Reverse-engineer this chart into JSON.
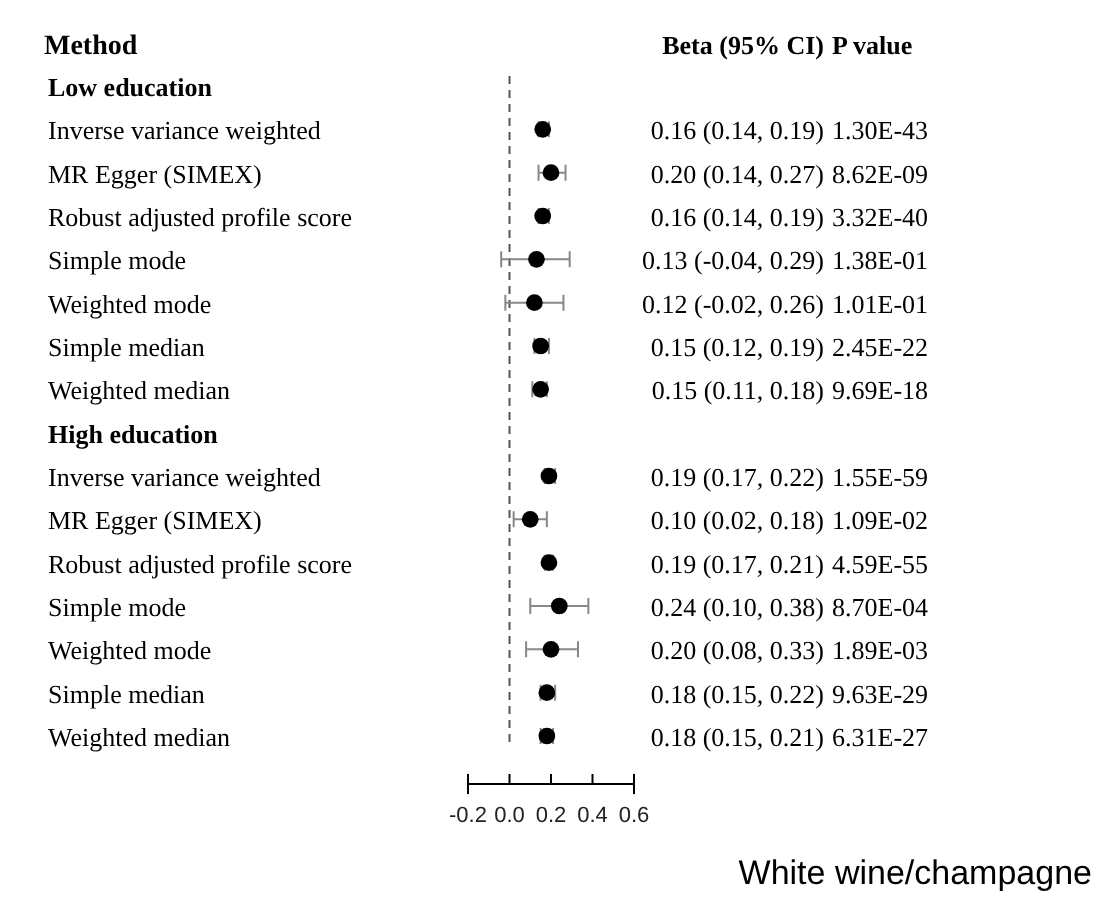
{
  "chart_data": {
    "type": "scatter",
    "orientation": "horizontal",
    "title": "White wine/champagne",
    "ylabel": "Method",
    "categories": [
      "Low education",
      "Inverse variance weighted",
      "MR Egger (SIMEX)",
      "Robust adjusted profile score",
      "Simple mode",
      "Weighted mode",
      "Simple median",
      "Weighted median",
      "High education",
      "Inverse variance weighted",
      "MR Egger (SIMEX)",
      "Robust adjusted profile score",
      "Simple mode",
      "Weighted mode",
      "Simple median",
      "Weighted median"
    ],
    "values": [
      null,
      0.16,
      0.2,
      0.16,
      0.13,
      0.12,
      0.15,
      0.15,
      null,
      0.19,
      0.1,
      0.19,
      0.24,
      0.2,
      0.18,
      0.18
    ],
    "errors": [
      null,
      [
        0.14,
        0.19
      ],
      [
        0.14,
        0.27
      ],
      [
        0.14,
        0.19
      ],
      [
        -0.04,
        0.29
      ],
      [
        -0.02,
        0.26
      ],
      [
        0.12,
        0.19
      ],
      [
        0.11,
        0.18
      ],
      null,
      [
        0.17,
        0.22
      ],
      [
        0.02,
        0.18
      ],
      [
        0.17,
        0.21
      ],
      [
        0.1,
        0.38
      ],
      [
        0.08,
        0.33
      ],
      [
        0.15,
        0.22
      ],
      [
        0.15,
        0.21
      ]
    ],
    "value_labels": [
      null,
      "0.16 (0.14, 0.19)",
      "0.20 (0.14, 0.27)",
      "0.16 (0.14, 0.19)",
      "0.13 (-0.04, 0.29)",
      "0.12 (-0.02, 0.26)",
      "0.15 (0.12, 0.19)",
      "0.15 (0.11, 0.18)",
      null,
      "0.19 (0.17, 0.22)",
      "0.10 (0.02, 0.18)",
      "0.19 (0.17, 0.21)",
      "0.24 (0.10, 0.38)",
      "0.20 (0.08, 0.33)",
      "0.18 (0.15, 0.22)",
      "0.18 (0.15, 0.21)"
    ],
    "annotations": [
      "Beta (95% CI)",
      "P value",
      "1.30E-43",
      "8.62E-09",
      "3.32E-40",
      "1.38E-01",
      "1.01E-01",
      "2.45E-22",
      "9.69E-18",
      "1.55E-59",
      "1.09E-02",
      "4.59E-55",
      "8.70E-04",
      "1.89E-03",
      "9.63E-29",
      "6.31E-27"
    ],
    "color": "#000000",
    "marker": "circle",
    "xlim": [
      -0.2,
      0.6
    ],
    "xticks": [
      {
        "value": -0.2,
        "label": "-0.2"
      },
      {
        "value": 0,
        "label": "0.0"
      },
      {
        "value": 0.2,
        "label": "0.2"
      },
      {
        "value": 0.4,
        "label": "0.4"
      },
      {
        "value": 0.6,
        "label": "0.6"
      }
    ],
    "ref_lines": [
      {
        "axis": "x",
        "value": 0,
        "label": null,
        "line_style": "dashed"
      }
    ]
  }
}
